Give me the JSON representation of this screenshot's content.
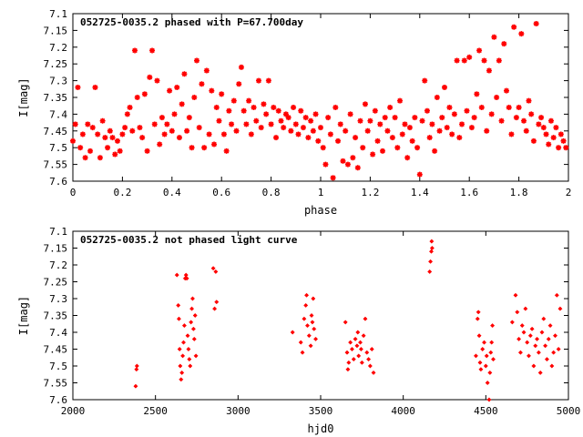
{
  "chart_data": [
    {
      "type": "scatter",
      "title": "052725-0035.2 phased with P=67.700day",
      "xlabel": "phase",
      "ylabel": "I[mag]",
      "xlim": [
        0,
        2
      ],
      "ylim": [
        7.6,
        7.1
      ],
      "y_inverted": true,
      "x_ticks": [
        "0",
        "0.2",
        "0.4",
        "0.6",
        "0.8",
        "1",
        "1.2",
        "1.4",
        "1.6",
        "1.8",
        "2"
      ],
      "y_ticks": [
        "7.1",
        "7.15",
        "7.2",
        "7.25",
        "7.3",
        "7.35",
        "7.4",
        "7.45",
        "7.5",
        "7.55",
        "7.6"
      ],
      "marker": "star",
      "color": "#ff0000",
      "points": [
        [
          0.0,
          7.48
        ],
        [
          0.01,
          7.43
        ],
        [
          0.02,
          7.32
        ],
        [
          0.03,
          7.5
        ],
        [
          0.04,
          7.46
        ],
        [
          0.05,
          7.53
        ],
        [
          0.06,
          7.43
        ],
        [
          0.07,
          7.51
        ],
        [
          0.08,
          7.44
        ],
        [
          0.09,
          7.32
        ],
        [
          0.1,
          7.46
        ],
        [
          0.11,
          7.53
        ],
        [
          0.12,
          7.42
        ],
        [
          0.13,
          7.47
        ],
        [
          0.14,
          7.5
        ],
        [
          0.15,
          7.45
        ],
        [
          0.16,
          7.47
        ],
        [
          0.17,
          7.52
        ],
        [
          0.18,
          7.48
        ],
        [
          0.19,
          7.51
        ],
        [
          0.2,
          7.46
        ],
        [
          0.21,
          7.44
        ],
        [
          0.22,
          7.4
        ],
        [
          0.23,
          7.38
        ],
        [
          0.24,
          7.45
        ],
        [
          0.25,
          7.21
        ],
        [
          0.26,
          7.35
        ],
        [
          0.27,
          7.44
        ],
        [
          0.28,
          7.47
        ],
        [
          0.29,
          7.34
        ],
        [
          0.3,
          7.51
        ],
        [
          0.31,
          7.29
        ],
        [
          0.32,
          7.21
        ],
        [
          0.33,
          7.43
        ],
        [
          0.34,
          7.3
        ],
        [
          0.35,
          7.49
        ],
        [
          0.36,
          7.41
        ],
        [
          0.37,
          7.46
        ],
        [
          0.38,
          7.43
        ],
        [
          0.39,
          7.33
        ],
        [
          0.4,
          7.45
        ],
        [
          0.41,
          7.4
        ],
        [
          0.42,
          7.32
        ],
        [
          0.43,
          7.47
        ],
        [
          0.44,
          7.37
        ],
        [
          0.45,
          7.28
        ],
        [
          0.46,
          7.45
        ],
        [
          0.47,
          7.41
        ],
        [
          0.48,
          7.5
        ],
        [
          0.49,
          7.35
        ],
        [
          0.5,
          7.24
        ],
        [
          0.51,
          7.44
        ],
        [
          0.52,
          7.31
        ],
        [
          0.53,
          7.5
        ],
        [
          0.54,
          7.27
        ],
        [
          0.55,
          7.46
        ],
        [
          0.56,
          7.33
        ],
        [
          0.57,
          7.49
        ],
        [
          0.58,
          7.38
        ],
        [
          0.59,
          7.42
        ],
        [
          0.6,
          7.34
        ],
        [
          0.61,
          7.46
        ],
        [
          0.62,
          7.51
        ],
        [
          0.63,
          7.39
        ],
        [
          0.64,
          7.43
        ],
        [
          0.65,
          7.36
        ],
        [
          0.66,
          7.45
        ],
        [
          0.67,
          7.31
        ],
        [
          0.68,
          7.26
        ],
        [
          0.69,
          7.39
        ],
        [
          0.7,
          7.43
        ],
        [
          0.71,
          7.36
        ],
        [
          0.72,
          7.46
        ],
        [
          0.73,
          7.38
        ],
        [
          0.74,
          7.42
        ],
        [
          0.75,
          7.3
        ],
        [
          0.76,
          7.44
        ],
        [
          0.77,
          7.37
        ],
        [
          0.78,
          7.4
        ],
        [
          0.79,
          7.3
        ],
        [
          0.8,
          7.43
        ],
        [
          0.81,
          7.38
        ],
        [
          0.82,
          7.47
        ],
        [
          0.83,
          7.39
        ],
        [
          0.84,
          7.42
        ],
        [
          0.85,
          7.44
        ],
        [
          0.86,
          7.4
        ],
        [
          0.87,
          7.41
        ],
        [
          0.88,
          7.45
        ],
        [
          0.89,
          7.38
        ],
        [
          0.9,
          7.43
        ],
        [
          0.91,
          7.46
        ],
        [
          0.92,
          7.39
        ],
        [
          0.93,
          7.44
        ],
        [
          0.94,
          7.41
        ],
        [
          0.95,
          7.47
        ],
        [
          0.96,
          7.42
        ],
        [
          0.97,
          7.45
        ],
        [
          0.98,
          7.4
        ],
        [
          0.99,
          7.48
        ],
        [
          1.0,
          7.44
        ],
        [
          1.01,
          7.5
        ],
        [
          1.02,
          7.55
        ],
        [
          1.03,
          7.41
        ],
        [
          1.04,
          7.46
        ],
        [
          1.05,
          7.59
        ],
        [
          1.06,
          7.38
        ],
        [
          1.07,
          7.48
        ],
        [
          1.08,
          7.43
        ],
        [
          1.09,
          7.54
        ],
        [
          1.1,
          7.45
        ],
        [
          1.11,
          7.55
        ],
        [
          1.12,
          7.4
        ],
        [
          1.13,
          7.53
        ],
        [
          1.14,
          7.47
        ],
        [
          1.15,
          7.56
        ],
        [
          1.16,
          7.42
        ],
        [
          1.17,
          7.5
        ],
        [
          1.18,
          7.37
        ],
        [
          1.19,
          7.45
        ],
        [
          1.2,
          7.42
        ],
        [
          1.21,
          7.52
        ],
        [
          1.22,
          7.39
        ],
        [
          1.23,
          7.48
        ],
        [
          1.24,
          7.43
        ],
        [
          1.25,
          7.51
        ],
        [
          1.26,
          7.41
        ],
        [
          1.27,
          7.45
        ],
        [
          1.28,
          7.38
        ],
        [
          1.29,
          7.47
        ],
        [
          1.3,
          7.41
        ],
        [
          1.31,
          7.5
        ],
        [
          1.32,
          7.36
        ],
        [
          1.33,
          7.46
        ],
        [
          1.34,
          7.43
        ],
        [
          1.35,
          7.53
        ],
        [
          1.36,
          7.44
        ],
        [
          1.37,
          7.48
        ],
        [
          1.38,
          7.41
        ],
        [
          1.39,
          7.5
        ],
        [
          1.4,
          7.58
        ],
        [
          1.41,
          7.42
        ],
        [
          1.42,
          7.3
        ],
        [
          1.43,
          7.39
        ],
        [
          1.44,
          7.47
        ],
        [
          1.45,
          7.43
        ],
        [
          1.46,
          7.51
        ],
        [
          1.47,
          7.35
        ],
        [
          1.48,
          7.45
        ],
        [
          1.49,
          7.41
        ],
        [
          1.5,
          7.32
        ],
        [
          1.51,
          7.44
        ],
        [
          1.52,
          7.38
        ],
        [
          1.53,
          7.46
        ],
        [
          1.54,
          7.4
        ],
        [
          1.55,
          7.24
        ],
        [
          1.56,
          7.47
        ],
        [
          1.57,
          7.43
        ],
        [
          1.58,
          7.24
        ],
        [
          1.59,
          7.39
        ],
        [
          1.6,
          7.23
        ],
        [
          1.61,
          7.44
        ],
        [
          1.62,
          7.41
        ],
        [
          1.63,
          7.34
        ],
        [
          1.64,
          7.21
        ],
        [
          1.65,
          7.38
        ],
        [
          1.66,
          7.24
        ],
        [
          1.67,
          7.45
        ],
        [
          1.68,
          7.27
        ],
        [
          1.69,
          7.4
        ],
        [
          1.7,
          7.17
        ],
        [
          1.71,
          7.35
        ],
        [
          1.72,
          7.24
        ],
        [
          1.73,
          7.42
        ],
        [
          1.74,
          7.19
        ],
        [
          1.75,
          7.33
        ],
        [
          1.76,
          7.38
        ],
        [
          1.77,
          7.46
        ],
        [
          1.78,
          7.14
        ],
        [
          1.79,
          7.41
        ],
        [
          1.8,
          7.38
        ],
        [
          1.81,
          7.16
        ],
        [
          1.82,
          7.42
        ],
        [
          1.83,
          7.45
        ],
        [
          1.84,
          7.36
        ],
        [
          1.85,
          7.4
        ],
        [
          1.86,
          7.48
        ],
        [
          1.87,
          7.13
        ],
        [
          1.88,
          7.43
        ],
        [
          1.89,
          7.41
        ],
        [
          1.9,
          7.44
        ],
        [
          1.91,
          7.46
        ],
        [
          1.92,
          7.49
        ],
        [
          1.93,
          7.42
        ],
        [
          1.94,
          7.47
        ],
        [
          1.95,
          7.44
        ],
        [
          1.96,
          7.5
        ],
        [
          1.97,
          7.46
        ],
        [
          1.98,
          7.48
        ],
        [
          1.99,
          7.5
        ]
      ]
    },
    {
      "type": "scatter",
      "title": "052725-0035.2 not phased light curve",
      "xlabel": "hjd0",
      "ylabel": "I[mag]",
      "xlim": [
        2000,
        5000
      ],
      "ylim": [
        7.6,
        7.1
      ],
      "y_inverted": true,
      "x_ticks": [
        "2000",
        "2500",
        "3000",
        "3500",
        "4000",
        "4500",
        "5000"
      ],
      "y_ticks": [
        "7.1",
        "7.15",
        "7.2",
        "7.25",
        "7.3",
        "7.35",
        "7.4",
        "7.45",
        "7.5",
        "7.55",
        "7.6"
      ],
      "marker": "diamond",
      "color": "#ff0000",
      "points": [
        [
          2380,
          7.56
        ],
        [
          2385,
          7.51
        ],
        [
          2388,
          7.5
        ],
        [
          2630,
          7.23
        ],
        [
          2638,
          7.32
        ],
        [
          2642,
          7.36
        ],
        [
          2646,
          7.45
        ],
        [
          2650,
          7.5
        ],
        [
          2655,
          7.54
        ],
        [
          2660,
          7.52
        ],
        [
          2665,
          7.47
        ],
        [
          2670,
          7.43
        ],
        [
          2675,
          7.38
        ],
        [
          2680,
          7.24
        ],
        [
          2685,
          7.23
        ],
        [
          2690,
          7.24
        ],
        [
          2695,
          7.41
        ],
        [
          2700,
          7.45
        ],
        [
          2705,
          7.48
        ],
        [
          2710,
          7.5
        ],
        [
          2715,
          7.37
        ],
        [
          2720,
          7.33
        ],
        [
          2725,
          7.3
        ],
        [
          2730,
          7.39
        ],
        [
          2735,
          7.42
        ],
        [
          2740,
          7.35
        ],
        [
          2745,
          7.47
        ],
        [
          2850,
          7.21
        ],
        [
          2858,
          7.33
        ],
        [
          2865,
          7.22
        ],
        [
          2870,
          7.31
        ],
        [
          3330,
          7.4
        ],
        [
          3380,
          7.43
        ],
        [
          3390,
          7.46
        ],
        [
          3400,
          7.36
        ],
        [
          3410,
          7.32
        ],
        [
          3415,
          7.29
        ],
        [
          3420,
          7.38
        ],
        [
          3430,
          7.41
        ],
        [
          3440,
          7.44
        ],
        [
          3445,
          7.35
        ],
        [
          3450,
          7.37
        ],
        [
          3455,
          7.3
        ],
        [
          3460,
          7.39
        ],
        [
          3470,
          7.42
        ],
        [
          3650,
          7.37
        ],
        [
          3660,
          7.46
        ],
        [
          3665,
          7.51
        ],
        [
          3670,
          7.49
        ],
        [
          3680,
          7.43
        ],
        [
          3690,
          7.45
        ],
        [
          3700,
          7.48
        ],
        [
          3710,
          7.42
        ],
        [
          3720,
          7.44
        ],
        [
          3725,
          7.4
        ],
        [
          3730,
          7.47
        ],
        [
          3740,
          7.43
        ],
        [
          3745,
          7.45
        ],
        [
          3750,
          7.49
        ],
        [
          3760,
          7.41
        ],
        [
          3770,
          7.36
        ],
        [
          3780,
          7.46
        ],
        [
          3790,
          7.48
        ],
        [
          3800,
          7.5
        ],
        [
          3810,
          7.45
        ],
        [
          3820,
          7.52
        ],
        [
          4160,
          7.22
        ],
        [
          4165,
          7.19
        ],
        [
          4170,
          7.16
        ],
        [
          4172,
          7.13
        ],
        [
          4175,
          7.15
        ],
        [
          4440,
          7.47
        ],
        [
          4450,
          7.36
        ],
        [
          4455,
          7.34
        ],
        [
          4460,
          7.41
        ],
        [
          4465,
          7.49
        ],
        [
          4470,
          7.51
        ],
        [
          4480,
          7.45
        ],
        [
          4490,
          7.43
        ],
        [
          4500,
          7.5
        ],
        [
          4505,
          7.47
        ],
        [
          4510,
          7.55
        ],
        [
          4520,
          7.6
        ],
        [
          4525,
          7.52
        ],
        [
          4530,
          7.46
        ],
        [
          4535,
          7.43
        ],
        [
          4540,
          7.38
        ],
        [
          4545,
          7.48
        ],
        [
          4660,
          7.37
        ],
        [
          4680,
          7.29
        ],
        [
          4690,
          7.34
        ],
        [
          4700,
          7.42
        ],
        [
          4710,
          7.46
        ],
        [
          4720,
          7.38
        ],
        [
          4730,
          7.4
        ],
        [
          4740,
          7.33
        ],
        [
          4750,
          7.43
        ],
        [
          4760,
          7.47
        ],
        [
          4770,
          7.41
        ],
        [
          4780,
          7.39
        ],
        [
          4790,
          7.5
        ],
        [
          4800,
          7.44
        ],
        [
          4810,
          7.42
        ],
        [
          4820,
          7.46
        ],
        [
          4830,
          7.52
        ],
        [
          4840,
          7.4
        ],
        [
          4850,
          7.36
        ],
        [
          4860,
          7.44
        ],
        [
          4870,
          7.48
        ],
        [
          4880,
          7.42
        ],
        [
          4890,
          7.38
        ],
        [
          4900,
          7.5
        ],
        [
          4910,
          7.46
        ],
        [
          4920,
          7.41
        ],
        [
          4930,
          7.29
        ],
        [
          4940,
          7.45
        ],
        [
          4950,
          7.33
        ]
      ]
    }
  ]
}
